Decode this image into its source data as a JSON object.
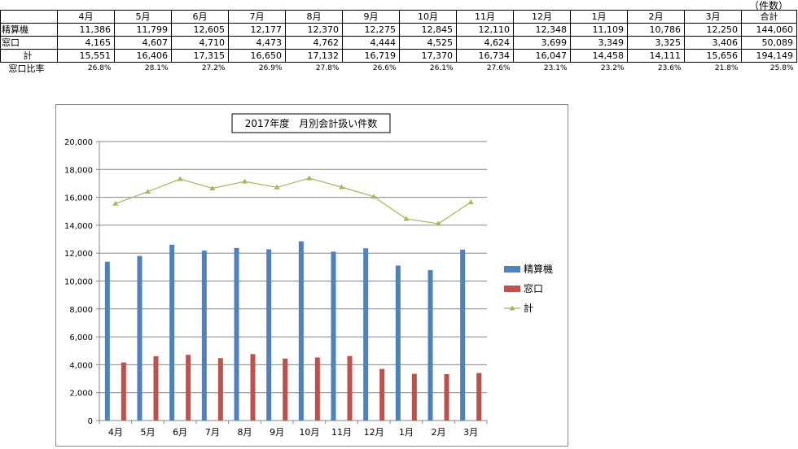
{
  "table": {
    "unit_label": "（件数）",
    "headers": [
      "",
      "4月",
      "5月",
      "6月",
      "7月",
      "8月",
      "9月",
      "10月",
      "11月",
      "12月",
      "1月",
      "2月",
      "3月",
      "合計"
    ],
    "rows": [
      {
        "label": "精算機",
        "cells": [
          "11,386",
          "11,799",
          "12,605",
          "12,177",
          "12,370",
          "12,275",
          "12,845",
          "12,110",
          "12,348",
          "11,109",
          "10,786",
          "12,250",
          "144,060"
        ]
      },
      {
        "label": "窓口",
        "cells": [
          "4,165",
          "4,607",
          "4,710",
          "4,473",
          "4,762",
          "4,444",
          "4,525",
          "4,624",
          "3,699",
          "3,349",
          "3,325",
          "3,406",
          "50,089"
        ]
      },
      {
        "label": "計",
        "cells": [
          "15,551",
          "16,406",
          "17,315",
          "16,650",
          "17,132",
          "16,719",
          "17,370",
          "16,734",
          "16,047",
          "14,458",
          "14,111",
          "15,656",
          "194,149"
        ]
      }
    ],
    "ratio": {
      "label": "窓口比率",
      "cells": [
        "26.8%",
        "28.1%",
        "27.2%",
        "26.9%",
        "27.8%",
        "26.6%",
        "26.1%",
        "27.6%",
        "23.1%",
        "23.2%",
        "23.6%",
        "21.8%",
        "25.8%"
      ]
    }
  },
  "chart_data": {
    "type": "bar",
    "title": "2017年度　月別会計扱い件数",
    "categories": [
      "4月",
      "5月",
      "6月",
      "7月",
      "8月",
      "9月",
      "10月",
      "11月",
      "12月",
      "1月",
      "2月",
      "3月"
    ],
    "series": [
      {
        "name": "精算機",
        "kind": "bar",
        "color": "#4f81bd",
        "values": [
          11386,
          11799,
          12605,
          12177,
          12370,
          12275,
          12845,
          12110,
          12348,
          11109,
          10786,
          12250
        ]
      },
      {
        "name": "窓口",
        "kind": "bar",
        "color": "#c0504d",
        "values": [
          4165,
          4607,
          4710,
          4473,
          4762,
          4444,
          4525,
          4624,
          3699,
          3349,
          3325,
          3406
        ]
      },
      {
        "name": "計",
        "kind": "line",
        "marker": "triangle",
        "color": "#9bbb59",
        "values": [
          15551,
          16406,
          17315,
          16650,
          17132,
          16719,
          17370,
          16734,
          16047,
          14458,
          14111,
          15656
        ]
      }
    ],
    "ylim": [
      0,
      20000
    ],
    "yticks": [
      "0",
      "2,000",
      "4,000",
      "6,000",
      "8,000",
      "10,000",
      "12,000",
      "14,000",
      "16,000",
      "18,000",
      "20,000"
    ],
    "grid": true,
    "legend_position": "right",
    "xlabel": "",
    "ylabel": ""
  }
}
